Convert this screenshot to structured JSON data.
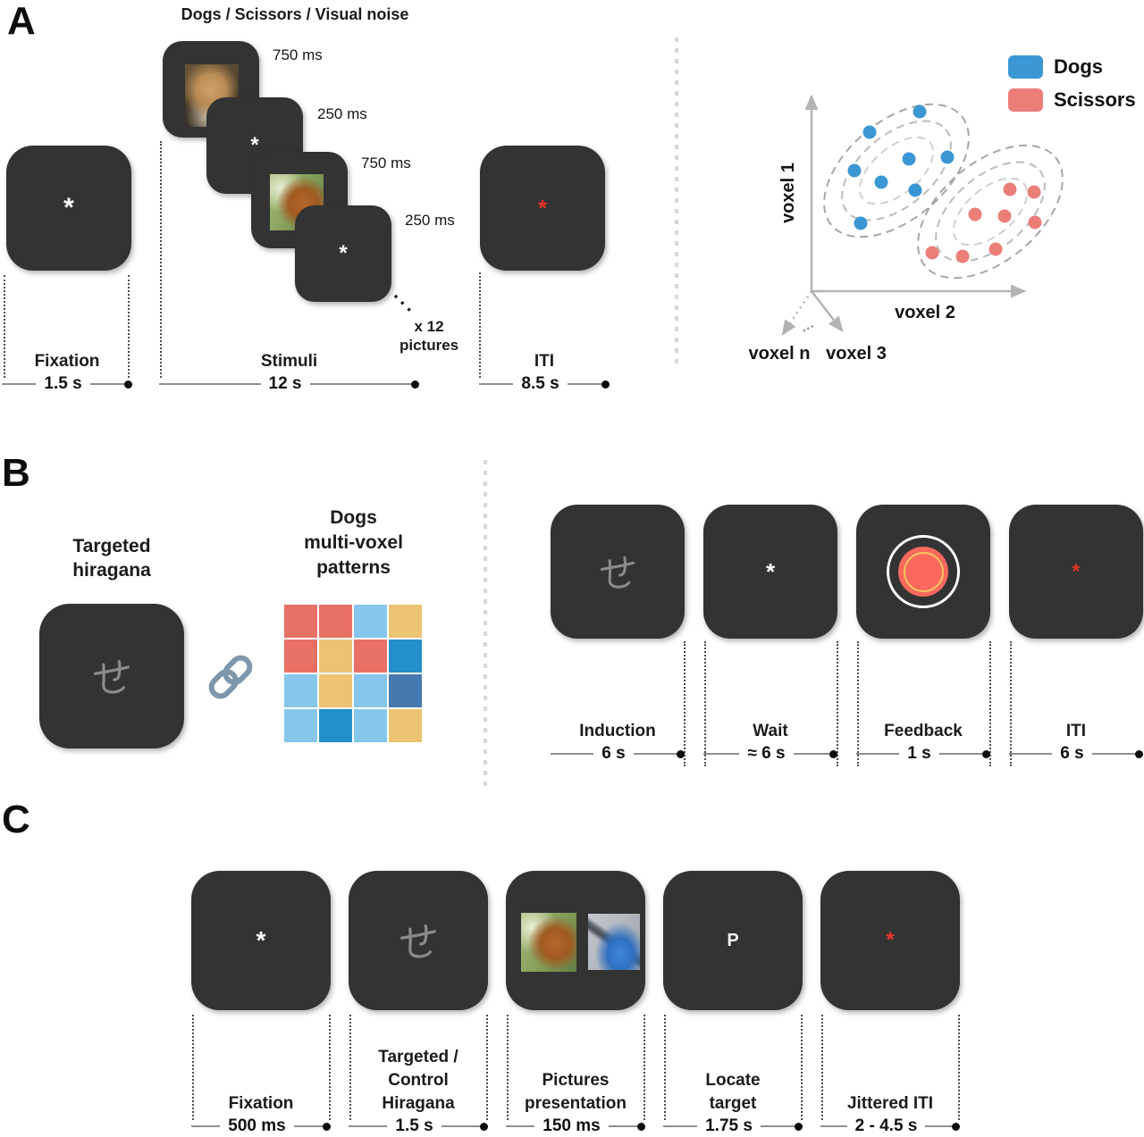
{
  "colors": {
    "screen_bg": "#333333",
    "asterisk_white": "#ffffff",
    "asterisk_red": "#e8332a",
    "hiragana_gray": "#8b8b8b",
    "dogs_blue": "#3b97d3",
    "scissors_red": "#ec7e78",
    "grid_salmon": "#e97065",
    "grid_lightblue": "#85c6ea",
    "grid_gold": "#ecc371",
    "grid_blue": "#2490ca",
    "grid_slate": "#4679af",
    "link_icon": "#7e97ad",
    "feedback_fill": "#fa685e",
    "feedback_gold": "#f2c65f"
  },
  "panelA": {
    "label": "A",
    "stimuli_title": "Dogs / Scissors / Visual noise",
    "timing_labels": [
      "750 ms",
      "250 ms",
      "750 ms",
      "250 ms"
    ],
    "cascade_ellipsis": "···",
    "repeat_note_line1": "x 12",
    "repeat_note_line2": "pictures",
    "fixation": {
      "label": "Fixation",
      "time": "1.5 s",
      "symbol": "*"
    },
    "stimuli": {
      "label": "Stimuli",
      "time": "12 s"
    },
    "iti": {
      "label": "ITI",
      "time": "8.5 s",
      "symbol": "*"
    }
  },
  "chart_data": {
    "type": "scatter",
    "title": "",
    "xlabel": "voxel 2",
    "ylabel": "voxel 1",
    "axis3_label": "voxel 3",
    "axisn_label": "voxel n",
    "axis_ellipsis": "···",
    "coordinate_space": "figure px within 440x360 svg, no numeric ticks shown",
    "legend_position": "top-right",
    "legend": [
      {
        "label": "Dogs",
        "color": "dogs_blue"
      },
      {
        "label": "Scissors",
        "color": "scissors_red"
      }
    ],
    "series": [
      {
        "name": "Dogs",
        "color": "dogs_blue",
        "points": [
          [
            199,
            75
          ],
          [
            143,
            98
          ],
          [
            187,
            128
          ],
          [
            230,
            126
          ],
          [
            126,
            141
          ],
          [
            156,
            154
          ],
          [
            194,
            163
          ],
          [
            133,
            200
          ]
        ]
      },
      {
        "name": "Scissors",
        "color": "scissors_red",
        "points": [
          [
            300,
            162
          ],
          [
            327,
            165
          ],
          [
            261,
            190
          ],
          [
            294,
            192
          ],
          [
            328,
            199
          ],
          [
            213,
            233
          ],
          [
            247,
            237
          ],
          [
            284,
            229
          ]
        ]
      }
    ],
    "clusters": [
      {
        "name": "Dogs",
        "center": [
          173,
          141
        ],
        "rotation": -40,
        "radii": [
          [
            95,
            55
          ],
          [
            72,
            40
          ],
          [
            49,
            26
          ]
        ],
        "stroke": [
          "#a6a6a6",
          "#bcbcbc",
          "#d0d0d0"
        ]
      },
      {
        "name": "Scissors",
        "center": [
          278,
          187
        ],
        "rotation": -40,
        "radii": [
          [
            95,
            55
          ],
          [
            72,
            40
          ],
          [
            49,
            26
          ]
        ],
        "stroke": [
          "#a6a6a6",
          "#bcbcbc",
          "#d0d0d0"
        ]
      }
    ]
  },
  "panelB": {
    "label": "B",
    "hiragana_char": "せ",
    "targeted": {
      "title_line1": "Targeted",
      "title_line2": "hiragana"
    },
    "pattern": {
      "title_line1": "Dogs",
      "title_line2": "multi-voxel",
      "title_line3": "patterns",
      "cells": [
        "grid_salmon",
        "grid_salmon",
        "grid_lightblue",
        "grid_gold",
        "grid_salmon",
        "grid_gold",
        "grid_salmon",
        "grid_blue",
        "grid_lightblue",
        "grid_gold",
        "grid_lightblue",
        "grid_slate",
        "grid_lightblue",
        "grid_blue",
        "grid_lightblue",
        "grid_gold"
      ]
    },
    "sequence": [
      {
        "label": "Induction",
        "time": "6 s"
      },
      {
        "label": "Wait",
        "time": "≈ 6 s",
        "symbol": "*"
      },
      {
        "label": "Feedback",
        "time": "1 s"
      },
      {
        "label": "ITI",
        "time": "6 s",
        "symbol": "*"
      }
    ]
  },
  "panelC": {
    "label": "C",
    "hiragana_char": "せ",
    "screens": [
      {
        "label_lines": [
          "Fixation"
        ],
        "time": "500 ms",
        "symbol": "*"
      },
      {
        "label_lines": [
          "Targeted /",
          "Control",
          "Hiragana"
        ],
        "time": "1.5 s"
      },
      {
        "label_lines": [
          "Pictures",
          "presentation"
        ],
        "time": "150 ms"
      },
      {
        "label_lines": [
          "Locate",
          "target"
        ],
        "time": "1.75 s",
        "symbol": "P"
      },
      {
        "label_lines": [
          "Jittered ITI"
        ],
        "time": "2 - 4.5 s",
        "symbol": "*"
      }
    ]
  }
}
